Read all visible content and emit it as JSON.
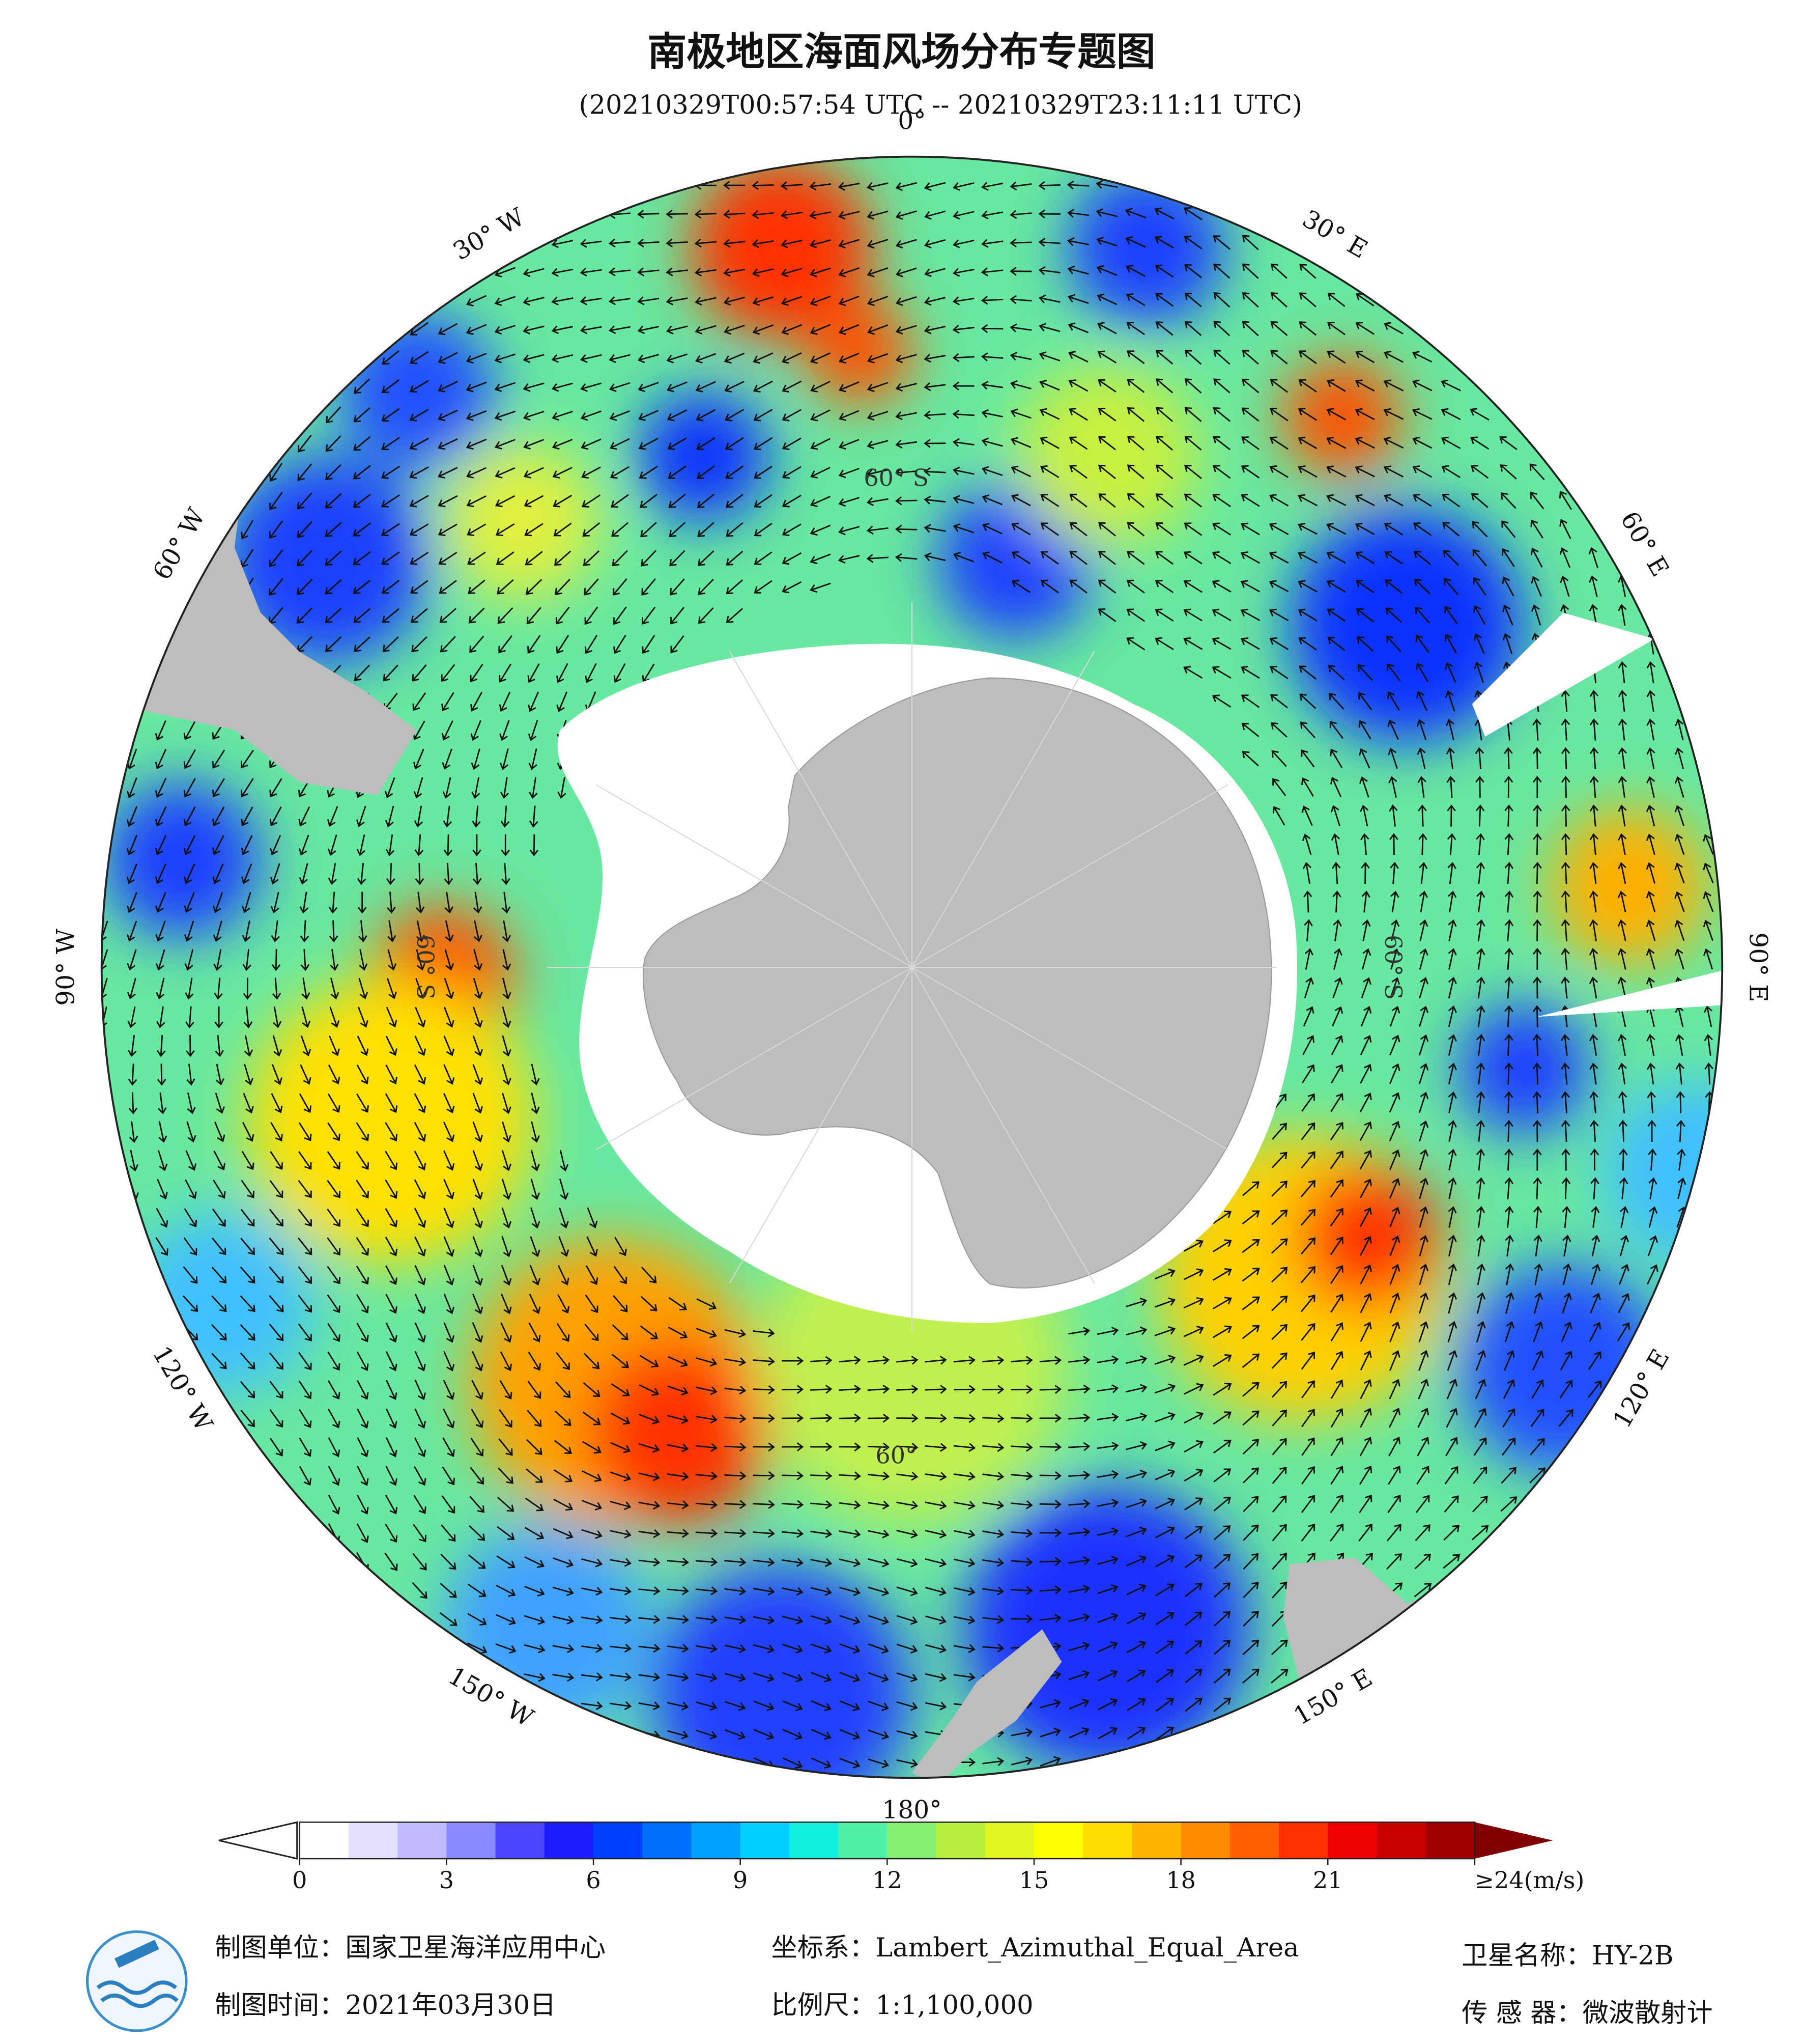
{
  "header": {
    "title": "南极地区海面风场分布专题图",
    "subtitle": "(20210329T00:57:54 UTC -- 20210329T23:11:11 UTC)"
  },
  "map": {
    "longitude_labels": [
      "0°",
      "30° E",
      "60° E",
      "90° E",
      "120° E",
      "150° E",
      "180°",
      "150° W",
      "120° W",
      "90° W",
      "60° W",
      "30° W"
    ],
    "latitude_labels": [
      "60° S",
      "60° S",
      "60° S",
      "60°"
    ]
  },
  "colorbar": {
    "range": [
      0,
      24
    ],
    "ticks": [
      0,
      3,
      6,
      9,
      12,
      15,
      18,
      21,
      {
        "value": 24,
        "label": "≥24(m/s)"
      }
    ],
    "colors": [
      "#ffffff",
      "#e4e0ff",
      "#c0bcff",
      "#8c88ff",
      "#4a46ff",
      "#1c1cff",
      "#0040ff",
      "#0070ff",
      "#00a0ff",
      "#00d0ff",
      "#10f0e0",
      "#50f0a8",
      "#88f070",
      "#b8f040",
      "#e0f820",
      "#ffff00",
      "#ffdc00",
      "#ffb400",
      "#ff8c00",
      "#ff6000",
      "#ff3000",
      "#f00000",
      "#c80000",
      "#a00000"
    ]
  },
  "footer": {
    "producer": "制图单位：国家卫星海洋应用中心",
    "date": "制图时间：2021年03月30日",
    "projection": "坐标系：Lambert_Azimuthal_Equal_Area",
    "scale": "比例尺：1:1,100,000",
    "satellite": "卫星名称：HY-2B",
    "sensor": "传 感 器：微波散射计"
  }
}
